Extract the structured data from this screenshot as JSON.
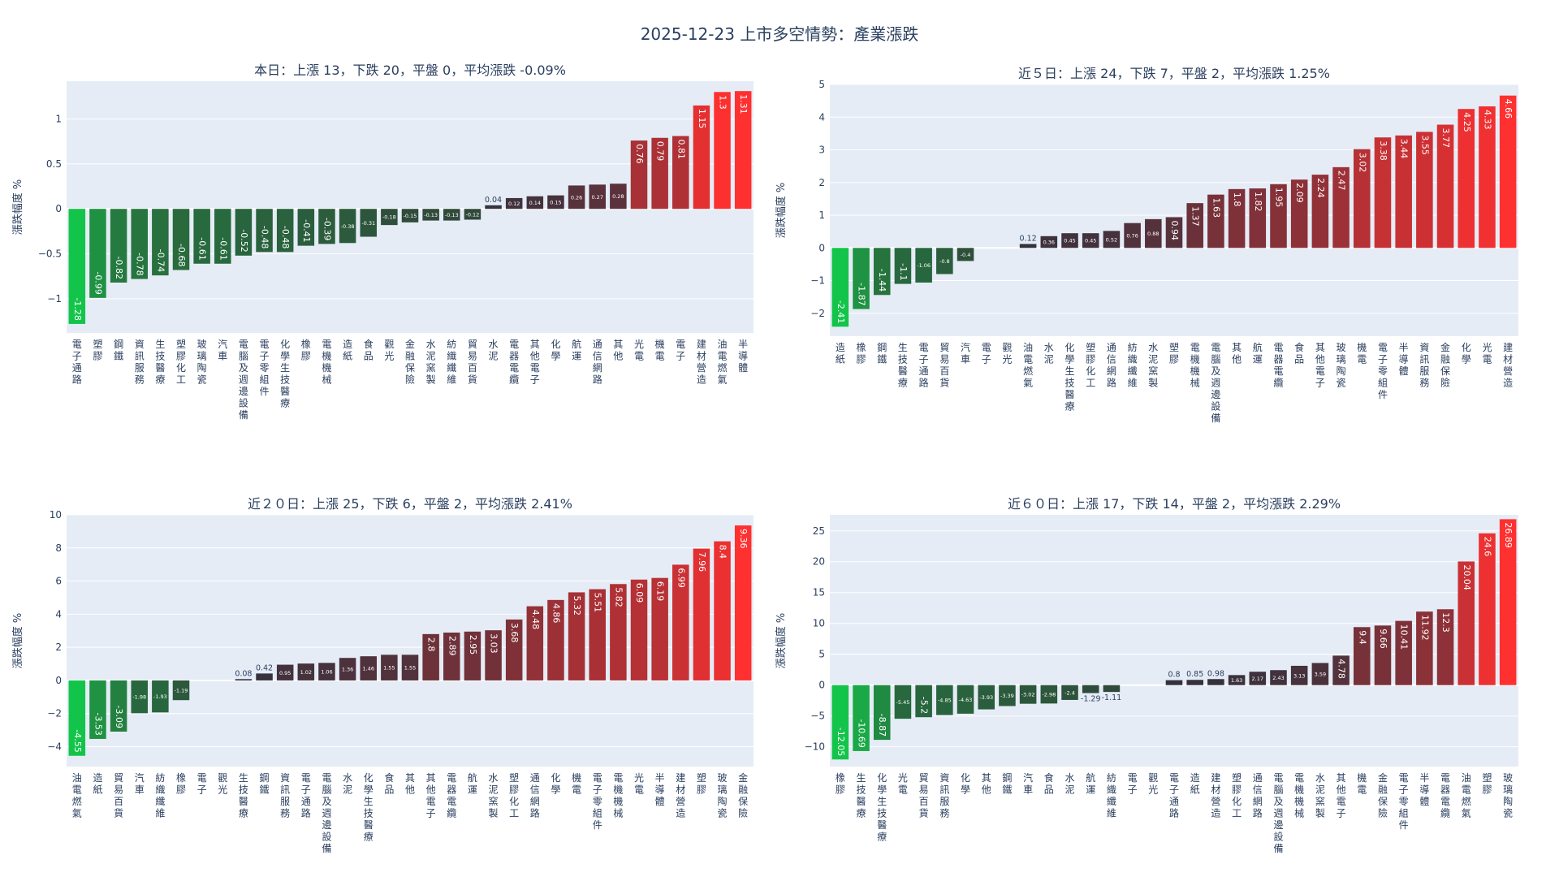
{
  "title": "2025-12-23 上市多空情勢：產業漲跌",
  "colors": {
    "plot_bg": "#e5ecf6",
    "grid": "#ffffff",
    "text": "#2a3f5f",
    "zero": "#ffffff"
  },
  "chart_data": [
    {
      "type": "bar",
      "title": "本日：上漲 13，下跌 20，平盤 0，平均漲跌 -0.09%",
      "ylabel": "漲跌幅度 %",
      "xlabel": "",
      "ylim": [
        -1.38,
        1.42
      ],
      "yticks": [
        -1,
        -0.5,
        0,
        0.5,
        1
      ],
      "categories": [
        "電子通路",
        "塑膠",
        "鋼鐵",
        "資訊服務",
        "生技醫療",
        "塑膠化工",
        "玻璃陶瓷",
        "汽車",
        "電腦及週邊設備",
        "電子零組件",
        "化學生技醫療",
        "橡膠",
        "電機機械",
        "造紙",
        "食品",
        "觀光",
        "金融保險",
        "水泥窯製",
        "紡織纖維",
        "貿易百貨",
        "水泥",
        "電器電纜",
        "其他電子",
        "化學",
        "航運",
        "通信網路",
        "其他",
        "光電",
        "機電",
        "電子",
        "建材營造",
        "油電燃氣",
        "半導體"
      ],
      "values": [
        -1.28,
        -0.99,
        -0.82,
        -0.78,
        -0.74,
        -0.68,
        -0.61,
        -0.61,
        -0.52,
        -0.48,
        -0.48,
        -0.41,
        -0.39,
        -0.38,
        -0.31,
        -0.18,
        -0.15,
        -0.13,
        -0.13,
        -0.12,
        0.04,
        0.12,
        0.14,
        0.15,
        0.26,
        0.27,
        0.28,
        0.76,
        0.79,
        0.81,
        1.15,
        1.3,
        1.31
      ],
      "labels": [
        "-1.28",
        "-0.99",
        "-0.82",
        "-0.78",
        "-0.74",
        "-0.68",
        "-0.61",
        "-0.61",
        "-0.52",
        "-0.48",
        "-0.48",
        "-0.41",
        "-0.39",
        "-0.38",
        "-0.31",
        "-0.18",
        "-0.15",
        "-0.13",
        "-0.13",
        "-0.12",
        "0.04",
        "0.12",
        "0.14",
        "0.15",
        "0.26",
        "0.27",
        "0.28",
        "0.76",
        "0.79",
        "0.81",
        "1.15",
        "1.3",
        "1.31"
      ],
      "grid": true,
      "legend": "none"
    },
    {
      "type": "bar",
      "title": "近５日：上漲 24，下跌 7，平盤 2，平均漲跌 1.25%",
      "ylabel": "漲跌幅度 %",
      "xlabel": "",
      "ylim": [
        -2.7,
        5.0
      ],
      "yticks": [
        -2,
        -1,
        0,
        1,
        2,
        3,
        4,
        5
      ],
      "categories": [
        "造紙",
        "橡膠",
        "鋼鐵",
        "生技醫療",
        "電子通路",
        "貿易百貨",
        "汽車",
        "電子",
        "觀光",
        "油電燃氣",
        "水泥",
        "化學生技醫療",
        "塑膠化工",
        "通信網路",
        "紡織纖維",
        "水泥窯製",
        "塑膠",
        "電機機械",
        "電腦及週邊設備",
        "其他",
        "航運",
        "電器電纜",
        "食品",
        "其他電子",
        "玻璃陶瓷",
        "機電",
        "電子零組件",
        "半導體",
        "資訊服務",
        "金融保險",
        "化學",
        "光電",
        "建材營造"
      ],
      "values": [
        -2.41,
        -1.87,
        -1.44,
        -1.1,
        -1.06,
        -0.8,
        -0.4,
        0,
        0,
        0.12,
        0.36,
        0.45,
        0.45,
        0.52,
        0.76,
        0.88,
        0.94,
        1.37,
        1.63,
        1.8,
        1.82,
        1.95,
        2.09,
        2.24,
        2.47,
        3.02,
        3.38,
        3.44,
        3.55,
        3.77,
        4.25,
        4.33,
        4.66
      ],
      "labels": [
        "-2.41",
        "-1.87",
        "-1.44",
        "-1.1",
        "-1.06",
        "-0.8",
        "-0.4",
        "",
        "",
        "0.12",
        "0.36",
        "0.45",
        "0.45",
        "0.52",
        "0.76",
        "0.88",
        "0.94",
        "1.37",
        "1.63",
        "1.8",
        "1.82",
        "1.95",
        "2.09",
        "2.24",
        "2.47",
        "3.02",
        "3.38",
        "3.44",
        "3.55",
        "3.77",
        "4.25",
        "4.33",
        "4.66"
      ],
      "grid": true,
      "legend": "none"
    },
    {
      "type": "bar",
      "title": "近２０日：上漲 25，下跌 6，平盤 2，平均漲跌 2.41%",
      "ylabel": "漲跌幅度 %",
      "xlabel": "",
      "ylim": [
        -5.2,
        10.0
      ],
      "yticks": [
        -4,
        -2,
        0,
        2,
        4,
        6,
        8,
        10
      ],
      "categories": [
        "油電燃氣",
        "造紙",
        "貿易百貨",
        "汽車",
        "紡織纖維",
        "橡膠",
        "電子",
        "觀光",
        "生技醫療",
        "鋼鐵",
        "資訊服務",
        "電子通路",
        "電腦及週邊設備",
        "水泥",
        "化學生技醫療",
        "食品",
        "其他",
        "其他電子",
        "電器電纜",
        "航運",
        "水泥窯製",
        "塑膠化工",
        "通信網路",
        "化學",
        "機電",
        "電子零組件",
        "電機機械",
        "光電",
        "半導體",
        "建材營造",
        "塑膠",
        "玻璃陶瓷",
        "金融保險"
      ],
      "values": [
        -4.55,
        -3.53,
        -3.09,
        -1.98,
        -1.93,
        -1.19,
        0,
        0,
        0.08,
        0.42,
        0.95,
        1.02,
        1.06,
        1.36,
        1.46,
        1.55,
        1.55,
        2.8,
        2.89,
        2.95,
        3.03,
        3.68,
        4.48,
        4.86,
        5.32,
        5.51,
        5.82,
        6.09,
        6.19,
        6.99,
        7.96,
        8.4,
        9.36
      ],
      "labels": [
        "-4.55",
        "-3.53",
        "-3.09",
        "-1.98",
        "-1.93",
        "-1.19",
        "",
        "",
        "0.08",
        "0.42",
        "0.95",
        "1.02",
        "1.06",
        "1.36",
        "1.46",
        "1.55",
        "1.55",
        "2.8",
        "2.89",
        "2.95",
        "3.03",
        "3.68",
        "4.48",
        "4.86",
        "5.32",
        "5.51",
        "5.82",
        "6.09",
        "6.19",
        "6.99",
        "7.96",
        "8.4",
        "9.36"
      ],
      "grid": true,
      "legend": "none"
    },
    {
      "type": "bar",
      "title": "近６０日：上漲 17，下跌 14，平盤 2，平均漲跌 2.29%",
      "ylabel": "漲跌幅度 %",
      "xlabel": "",
      "ylim": [
        -13.2,
        27.6
      ],
      "yticks": [
        -10,
        -5,
        0,
        5,
        10,
        15,
        20,
        25
      ],
      "categories": [
        "橡膠",
        "生技醫療",
        "化學生技醫療",
        "光電",
        "貿易百貨",
        "資訊服務",
        "化學",
        "其他",
        "鋼鐵",
        "汽車",
        "食品",
        "水泥",
        "航運",
        "紡織纖維",
        "電子",
        "觀光",
        "電子通路",
        "造紙",
        "建材營造",
        "塑膠化工",
        "通信網路",
        "電腦及週邊設備",
        "電機機械",
        "水泥窯製",
        "其他電子",
        "機電",
        "金融保險",
        "電子零組件",
        "半導體",
        "電器電纜",
        "油電燃氣",
        "塑膠",
        "玻璃陶瓷"
      ],
      "values": [
        -12.05,
        -10.69,
        -8.87,
        -5.45,
        -5.2,
        -4.85,
        -4.63,
        -3.93,
        -3.39,
        -3.02,
        -2.98,
        -2.4,
        -1.29,
        -1.11,
        0,
        0,
        0.8,
        0.85,
        0.98,
        1.63,
        2.17,
        2.43,
        3.13,
        3.59,
        4.78,
        9.4,
        9.66,
        10.41,
        11.92,
        12.3,
        20.04,
        24.6,
        26.89
      ],
      "labels": [
        "-12.05",
        "-10.69",
        "-8.87",
        "-5.45",
        "-5.2",
        "-4.85",
        "-4.63",
        "-3.93",
        "-3.39",
        "-3.02",
        "-2.98",
        "-2.4",
        "-1.29",
        "-1.11",
        "",
        "",
        "0.8",
        "0.85",
        "0.98",
        "1.63",
        "2.17",
        "2.43",
        "3.13",
        "3.59",
        "4.78",
        "9.4",
        "9.66",
        "10.41",
        "11.92",
        "12.3",
        "20.04",
        "24.6",
        "26.89"
      ],
      "grid": true,
      "legend": "none"
    }
  ]
}
